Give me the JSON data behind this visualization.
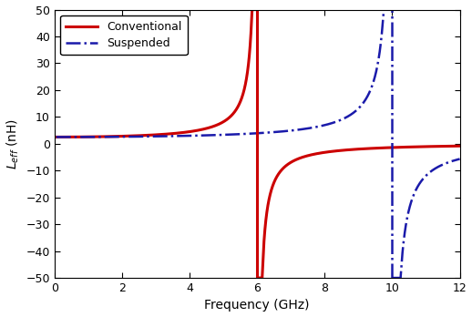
{
  "xlabel": "Frequency (GHz)",
  "ylabel": "L_{eff} (nH)",
  "xlim": [
    0,
    12
  ],
  "ylim": [
    -50,
    50
  ],
  "xticks": [
    0,
    2,
    4,
    6,
    8,
    10,
    12
  ],
  "yticks": [
    -50,
    -40,
    -30,
    -20,
    -10,
    0,
    10,
    20,
    30,
    40,
    50
  ],
  "conventional_color": "#cc0000",
  "suspended_color": "#1a1aaa",
  "conventional_resonance": 6.0,
  "suspended_resonance": 10.0,
  "L0_conventional": 2.5,
  "L0_suspended": 2.5,
  "background_color": "#ffffff",
  "legend_entries": [
    "Conventional",
    "Suspended"
  ],
  "figsize": [
    5.18,
    3.48
  ],
  "dpi": 100
}
